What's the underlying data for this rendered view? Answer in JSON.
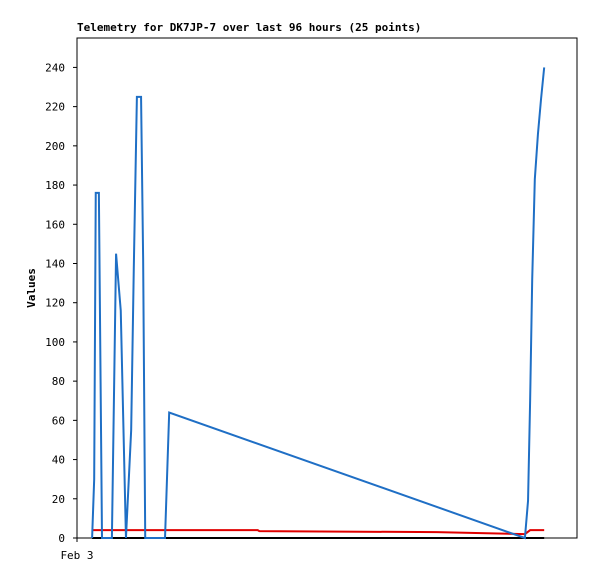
{
  "chart_data": {
    "type": "line",
    "title": "Telemetry for DK7JP-7 over last 96 hours (25 points)",
    "y_label": "Values",
    "xlim": [
      0,
      96
    ],
    "xticks": [
      {
        "value": 0,
        "label": "Feb 3"
      }
    ],
    "ylim": [
      0,
      255
    ],
    "yticks": [
      0,
      20,
      40,
      60,
      80,
      100,
      120,
      140,
      160,
      180,
      200,
      220,
      240
    ],
    "grid": false,
    "series": [
      {
        "color": "#000000",
        "x": [
          2.9,
          89.7
        ],
        "values": [
          0,
          0
        ]
      },
      {
        "color": "#e00000",
        "x": [
          2.9,
          34.7,
          35.0,
          69.1,
          86.0,
          87.0,
          89.7
        ],
        "values": [
          4,
          4,
          3.5,
          3,
          2,
          4,
          4
        ]
      },
      {
        "color": "#1f6fc5",
        "x": [
          2.9,
          3.3,
          3.6,
          4.2,
          4.8,
          6.7,
          7.5,
          8.4,
          9.4,
          10.4,
          10.9,
          11.5,
          12.3,
          12.7,
          13.1,
          16.9,
          17.7,
          86.0,
          86.6,
          87.0,
          87.4,
          87.9,
          88.5,
          89.1,
          89.7
        ],
        "values": [
          0,
          30,
          176,
          176,
          0,
          0,
          145,
          116,
          0,
          55,
          137,
          225,
          225,
          142,
          0,
          0,
          64,
          0,
          19,
          70,
          132,
          183,
          206,
          224,
          240
        ]
      }
    ]
  }
}
